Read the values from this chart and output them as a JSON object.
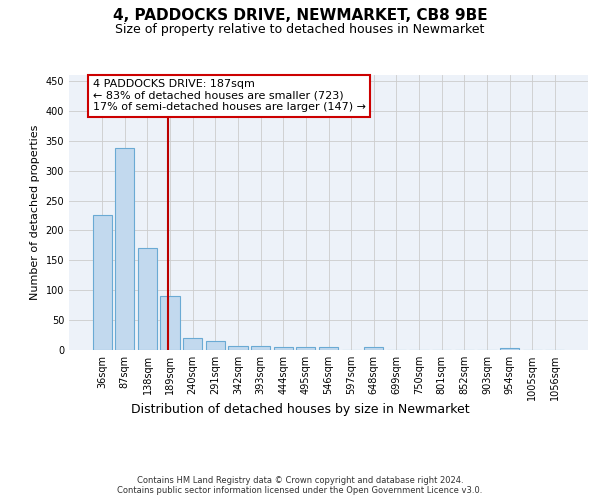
{
  "title": "4, PADDOCKS DRIVE, NEWMARKET, CB8 9BE",
  "subtitle": "Size of property relative to detached houses in Newmarket",
  "xlabel": "Distribution of detached houses by size in Newmarket",
  "ylabel": "Number of detached properties",
  "categories": [
    "36sqm",
    "87sqm",
    "138sqm",
    "189sqm",
    "240sqm",
    "291sqm",
    "342sqm",
    "393sqm",
    "444sqm",
    "495sqm",
    "546sqm",
    "597sqm",
    "648sqm",
    "699sqm",
    "750sqm",
    "801sqm",
    "852sqm",
    "903sqm",
    "954sqm",
    "1005sqm",
    "1056sqm"
  ],
  "values": [
    225,
    338,
    170,
    90,
    20,
    15,
    7,
    7,
    5,
    5,
    5,
    0,
    5,
    0,
    0,
    0,
    0,
    0,
    3,
    0,
    0
  ],
  "bar_color": "#c2d9ee",
  "bar_edge_color": "#6aaad4",
  "red_line_x": 2.925,
  "ylim": [
    0,
    460
  ],
  "yticks": [
    0,
    50,
    100,
    150,
    200,
    250,
    300,
    350,
    400,
    450
  ],
  "annotation_line1": "4 PADDOCKS DRIVE: 187sqm",
  "annotation_line2": "← 83% of detached houses are smaller (723)",
  "annotation_line3": "17% of semi-detached houses are larger (147) →",
  "footer_line1": "Contains HM Land Registry data © Crown copyright and database right 2024.",
  "footer_line2": "Contains public sector information licensed under the Open Government Licence v3.0.",
  "bg_color": "#edf2f9",
  "grid_color": "#cccccc",
  "title_fontsize": 11,
  "subtitle_fontsize": 9,
  "tick_fontsize": 7,
  "xlabel_fontsize": 9,
  "ylabel_fontsize": 8,
  "footer_fontsize": 6,
  "ann_fontsize": 8
}
